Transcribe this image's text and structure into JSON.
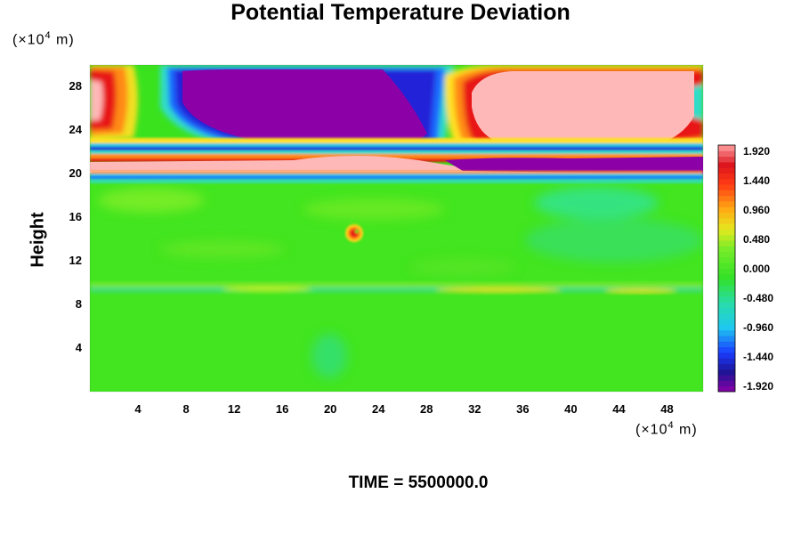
{
  "chart_data": {
    "type": "heatmap",
    "title": "Potential Temperature Deviation",
    "ylabel": "Height",
    "xunit": "(×10⁴ m)",
    "yunit": "(×10⁴ m)",
    "unit_prefix": "(×10",
    "unit_exp": "4",
    "unit_suffix": " m)",
    "x_ticks": [
      4,
      8,
      12,
      16,
      20,
      24,
      28,
      32,
      36,
      40,
      44,
      48
    ],
    "y_ticks": [
      4,
      8,
      12,
      16,
      20,
      24,
      28
    ],
    "xlim": [
      0,
      51
    ],
    "ylim": [
      0,
      30
    ],
    "grid": false,
    "colorbar": {
      "range": [
        -1.92,
        1.92
      ],
      "tick_labels": [
        "1.920",
        "1.440",
        "0.960",
        "0.480",
        "0.000",
        "-0.480",
        "-0.960",
        "-1.440",
        "-1.920"
      ],
      "tick_values": [
        1.92,
        1.44,
        0.96,
        0.48,
        0.0,
        -0.48,
        -0.96,
        -1.44,
        -1.92
      ]
    },
    "footer": "TIME = 5500000.0"
  }
}
